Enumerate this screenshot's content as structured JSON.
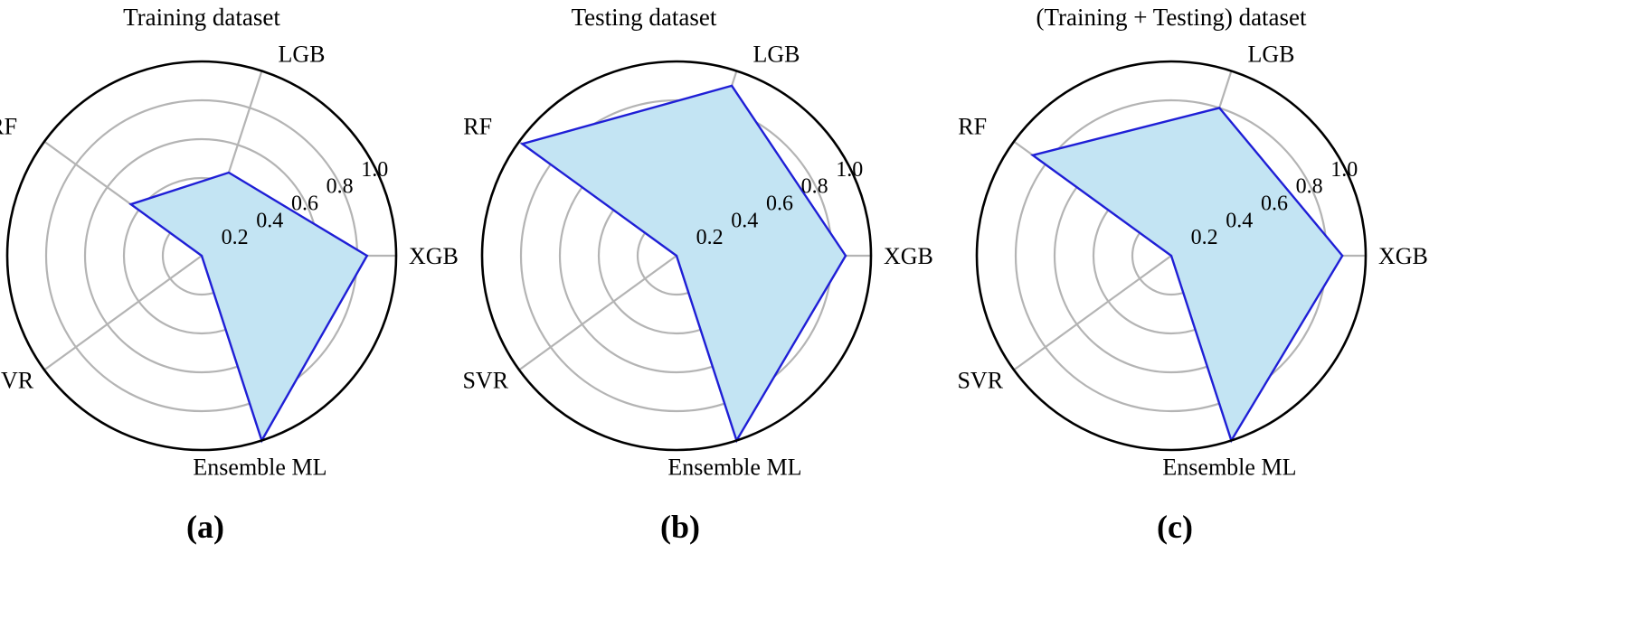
{
  "chart_data": [
    {
      "type": "radar",
      "panel_label": "(a)",
      "title": "Training dataset",
      "categories": [
        "XGB",
        "LGB",
        "RF",
        "SVR",
        "Ensemble ML"
      ],
      "values": [
        0.85,
        0.45,
        0.45,
        0.0,
        1.0
      ],
      "radial_ticks": [
        "0.2",
        "0.4",
        "0.6",
        "0.8",
        "1.0"
      ],
      "rlim": [
        0,
        1.0
      ],
      "grid": true,
      "colors": {
        "line": "#1f1fd6",
        "fill": "#c3e4f3",
        "grid": "#b4b4b4",
        "outer": "#000000"
      }
    },
    {
      "type": "radar",
      "panel_label": "(b)",
      "title": "Testing dataset",
      "categories": [
        "XGB",
        "LGB",
        "RF",
        "SVR",
        "Ensemble ML"
      ],
      "values": [
        0.87,
        0.92,
        0.98,
        0.0,
        1.0
      ],
      "radial_ticks": [
        "0.2",
        "0.4",
        "0.6",
        "0.8",
        "1.0"
      ],
      "rlim": [
        0,
        1.0
      ],
      "grid": true,
      "colors": {
        "line": "#1f1fd6",
        "fill": "#c3e4f3",
        "grid": "#b4b4b4",
        "outer": "#000000"
      }
    },
    {
      "type": "radar",
      "panel_label": "(c)",
      "title": "(Training + Testing) dataset",
      "categories": [
        "XGB",
        "LGB",
        "RF",
        "SVR",
        "Ensemble ML"
      ],
      "values": [
        0.88,
        0.8,
        0.88,
        0.0,
        1.0
      ],
      "radial_ticks": [
        "0.2",
        "0.4",
        "0.6",
        "0.8",
        "1.0"
      ],
      "rlim": [
        0,
        1.0
      ],
      "grid": true,
      "colors": {
        "line": "#1f1fd6",
        "fill": "#c3e4f3",
        "grid": "#b4b4b4",
        "outer": "#000000"
      }
    }
  ]
}
